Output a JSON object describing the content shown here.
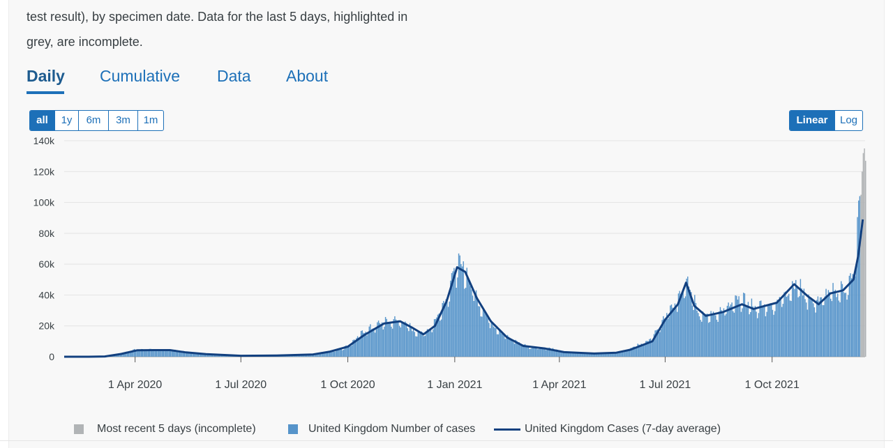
{
  "intro": {
    "line1": "test result), by specimen date. Data for the last 5 days, highlighted in",
    "line2": "grey, are incomplete."
  },
  "tabs": [
    {
      "label": "Daily",
      "active": true
    },
    {
      "label": "Cumulative",
      "active": false
    },
    {
      "label": "Data",
      "active": false
    },
    {
      "label": "About",
      "active": false
    }
  ],
  "range_buttons": [
    {
      "label": "all",
      "selected": true
    },
    {
      "label": "1y",
      "selected": false
    },
    {
      "label": "6m",
      "selected": false
    },
    {
      "label": "3m",
      "selected": false
    },
    {
      "label": "1m",
      "selected": false
    }
  ],
  "scale_buttons": [
    {
      "label": "Linear",
      "selected": true
    },
    {
      "label": "Log",
      "selected": false
    }
  ],
  "legend": [
    {
      "label": "Most recent 5 days (incomplete)",
      "color": "#b1b4b6"
    },
    {
      "label": "United Kingdom Number of cases",
      "color": "#5694ca"
    },
    {
      "label": "United Kingdom Cases (7-day average)",
      "color": "#12407F"
    }
  ],
  "chart_data": {
    "type": "bar",
    "x_axis": {
      "start": "2020-01-31",
      "end": "2021-12-20",
      "ticks": [
        {
          "date": "2020-04-01",
          "label": "1 Apr 2020"
        },
        {
          "date": "2020-07-01",
          "label": "1 Jul 2020"
        },
        {
          "date": "2020-10-01",
          "label": "1 Oct 2020"
        },
        {
          "date": "2021-01-01",
          "label": "1 Jan 2021"
        },
        {
          "date": "2021-04-01",
          "label": "1 Apr 2021"
        },
        {
          "date": "2021-07-01",
          "label": "1 Jul 2021"
        },
        {
          "date": "2021-10-01",
          "label": "1 Oct 2021"
        }
      ]
    },
    "y_axis": {
      "ylim": [
        0,
        140000
      ],
      "ticks": [
        {
          "value": 0,
          "label": "0"
        },
        {
          "value": 20000,
          "label": "20k"
        },
        {
          "value": 40000,
          "label": "40k"
        },
        {
          "value": 60000,
          "label": "60k"
        },
        {
          "value": 80000,
          "label": "80k"
        },
        {
          "value": 100000,
          "label": "100k"
        },
        {
          "value": 120000,
          "label": "120k"
        },
        {
          "value": 140000,
          "label": "140k"
        }
      ]
    },
    "grid": true,
    "legend_position": "bottom",
    "daily_cases_weekly_points": [
      [
        "2020-01-31",
        0
      ],
      [
        "2020-02-07",
        5
      ],
      [
        "2020-02-14",
        10
      ],
      [
        "2020-02-21",
        15
      ],
      [
        "2020-02-28",
        60
      ],
      [
        "2020-03-06",
        250
      ],
      [
        "2020-03-13",
        900
      ],
      [
        "2020-03-20",
        2300
      ],
      [
        "2020-03-27",
        3800
      ],
      [
        "2020-04-03",
        4700
      ],
      [
        "2020-04-10",
        4600
      ],
      [
        "2020-04-17",
        4400
      ],
      [
        "2020-04-24",
        4600
      ],
      [
        "2020-05-01",
        4200
      ],
      [
        "2020-05-08",
        3700
      ],
      [
        "2020-05-15",
        3000
      ],
      [
        "2020-05-22",
        2500
      ],
      [
        "2020-05-29",
        2000
      ],
      [
        "2020-06-05",
        1600
      ],
      [
        "2020-06-12",
        1300
      ],
      [
        "2020-06-19",
        1100
      ],
      [
        "2020-06-26",
        900
      ],
      [
        "2020-07-03",
        700
      ],
      [
        "2020-07-10",
        600
      ],
      [
        "2020-07-17",
        600
      ],
      [
        "2020-07-24",
        700
      ],
      [
        "2020-07-31",
        800
      ],
      [
        "2020-08-07",
        900
      ],
      [
        "2020-08-14",
        1000
      ],
      [
        "2020-08-21",
        1100
      ],
      [
        "2020-08-28",
        1300
      ],
      [
        "2020-09-04",
        2000
      ],
      [
        "2020-09-11",
        3300
      ],
      [
        "2020-09-18",
        3700
      ],
      [
        "2020-09-25",
        5000
      ],
      [
        "2020-10-02",
        7500
      ],
      [
        "2020-10-09",
        12500
      ],
      [
        "2020-10-16",
        17000
      ],
      [
        "2020-10-23",
        19000
      ],
      [
        "2020-10-30",
        22000
      ],
      [
        "2020-11-06",
        22500
      ],
      [
        "2020-11-13",
        23500
      ],
      [
        "2020-11-20",
        21000
      ],
      [
        "2020-11-27",
        16500
      ],
      [
        "2020-12-04",
        15000
      ],
      [
        "2020-12-11",
        18000
      ],
      [
        "2020-12-18",
        28000
      ],
      [
        "2020-12-25",
        38000
      ],
      [
        "2021-01-01",
        57000
      ],
      [
        "2021-01-08",
        58000
      ],
      [
        "2021-01-15",
        45000
      ],
      [
        "2021-01-22",
        34000
      ],
      [
        "2021-01-29",
        25000
      ],
      [
        "2021-02-05",
        19000
      ],
      [
        "2021-02-12",
        14000
      ],
      [
        "2021-02-19",
        11000
      ],
      [
        "2021-02-26",
        8500
      ],
      [
        "2021-03-05",
        6300
      ],
      [
        "2021-03-12",
        5800
      ],
      [
        "2021-03-19",
        5500
      ],
      [
        "2021-03-26",
        5200
      ],
      [
        "2021-04-02",
        3700
      ],
      [
        "2021-04-09",
        2700
      ],
      [
        "2021-04-16",
        2400
      ],
      [
        "2021-04-23",
        2200
      ],
      [
        "2021-04-30",
        2000
      ],
      [
        "2021-05-07",
        2100
      ],
      [
        "2021-05-14",
        2300
      ],
      [
        "2021-05-21",
        2800
      ],
      [
        "2021-05-28",
        4000
      ],
      [
        "2021-06-04",
        6500
      ],
      [
        "2021-06-11",
        8500
      ],
      [
        "2021-06-18",
        11000
      ],
      [
        "2021-06-25",
        18000
      ],
      [
        "2021-07-02",
        27000
      ],
      [
        "2021-07-09",
        33000
      ],
      [
        "2021-07-16",
        45000
      ],
      [
        "2021-07-20",
        51000
      ],
      [
        "2021-07-23",
        42000
      ],
      [
        "2021-07-30",
        28000
      ],
      [
        "2021-08-06",
        26000
      ],
      [
        "2021-08-13",
        28000
      ],
      [
        "2021-08-20",
        30000
      ],
      [
        "2021-08-27",
        33000
      ],
      [
        "2021-09-03",
        37000
      ],
      [
        "2021-09-10",
        34000
      ],
      [
        "2021-09-17",
        31000
      ],
      [
        "2021-09-24",
        33000
      ],
      [
        "2021-10-01",
        33000
      ],
      [
        "2021-10-08",
        37000
      ],
      [
        "2021-10-15",
        43000
      ],
      [
        "2021-10-22",
        47000
      ],
      [
        "2021-10-29",
        40000
      ],
      [
        "2021-11-05",
        35000
      ],
      [
        "2021-11-12",
        37000
      ],
      [
        "2021-11-19",
        41000
      ],
      [
        "2021-11-26",
        42000
      ],
      [
        "2021-12-03",
        44000
      ],
      [
        "2021-12-08",
        49000
      ],
      [
        "2021-12-11",
        58000
      ],
      [
        "2021-12-13",
        80000
      ],
      [
        "2021-12-14",
        95000
      ],
      [
        "2021-12-15",
        103000
      ],
      [
        "2021-12-16",
        100000
      ],
      [
        "2021-12-17",
        92000
      ]
    ],
    "incomplete_last_5_days": [
      [
        "2021-12-16",
        105000
      ],
      [
        "2021-12-17",
        120000
      ],
      [
        "2021-12-18",
        132000
      ],
      [
        "2021-12-19",
        135000
      ],
      [
        "2021-12-20",
        127000
      ]
    ],
    "seven_day_average": [
      [
        "2020-01-31",
        0
      ],
      [
        "2020-02-21",
        20
      ],
      [
        "2020-03-06",
        200
      ],
      [
        "2020-03-20",
        1800
      ],
      [
        "2020-04-03",
        4200
      ],
      [
        "2020-04-17",
        4300
      ],
      [
        "2020-05-01",
        4300
      ],
      [
        "2020-05-15",
        2800
      ],
      [
        "2020-06-01",
        1700
      ],
      [
        "2020-07-01",
        650
      ],
      [
        "2020-08-01",
        800
      ],
      [
        "2020-09-01",
        1500
      ],
      [
        "2020-09-15",
        3200
      ],
      [
        "2020-10-01",
        6500
      ],
      [
        "2020-10-15",
        14000
      ],
      [
        "2020-11-01",
        21500
      ],
      [
        "2020-11-15",
        23000
      ],
      [
        "2020-11-25",
        19000
      ],
      [
        "2020-12-05",
        14500
      ],
      [
        "2020-12-15",
        20000
      ],
      [
        "2020-12-25",
        36000
      ],
      [
        "2021-01-03",
        58000
      ],
      [
        "2021-01-10",
        55000
      ],
      [
        "2021-01-20",
        38000
      ],
      [
        "2021-02-01",
        23000
      ],
      [
        "2021-02-15",
        12500
      ],
      [
        "2021-03-01",
        7000
      ],
      [
        "2021-03-20",
        5300
      ],
      [
        "2021-04-05",
        3000
      ],
      [
        "2021-05-01",
        2100
      ],
      [
        "2021-05-20",
        2600
      ],
      [
        "2021-06-01",
        4500
      ],
      [
        "2021-06-20",
        10000
      ],
      [
        "2021-07-01",
        24000
      ],
      [
        "2021-07-12",
        34000
      ],
      [
        "2021-07-19",
        48000
      ],
      [
        "2021-07-26",
        33000
      ],
      [
        "2021-08-05",
        26500
      ],
      [
        "2021-08-20",
        29000
      ],
      [
        "2021-09-05",
        34000
      ],
      [
        "2021-09-15",
        31000
      ],
      [
        "2021-09-25",
        33000
      ],
      [
        "2021-10-05",
        35000
      ],
      [
        "2021-10-20",
        47000
      ],
      [
        "2021-11-01",
        39000
      ],
      [
        "2021-11-10",
        34000
      ],
      [
        "2021-11-20",
        41000
      ],
      [
        "2021-12-01",
        43000
      ],
      [
        "2021-12-10",
        50000
      ],
      [
        "2021-12-14",
        65000
      ],
      [
        "2021-12-18",
        89000
      ]
    ]
  }
}
